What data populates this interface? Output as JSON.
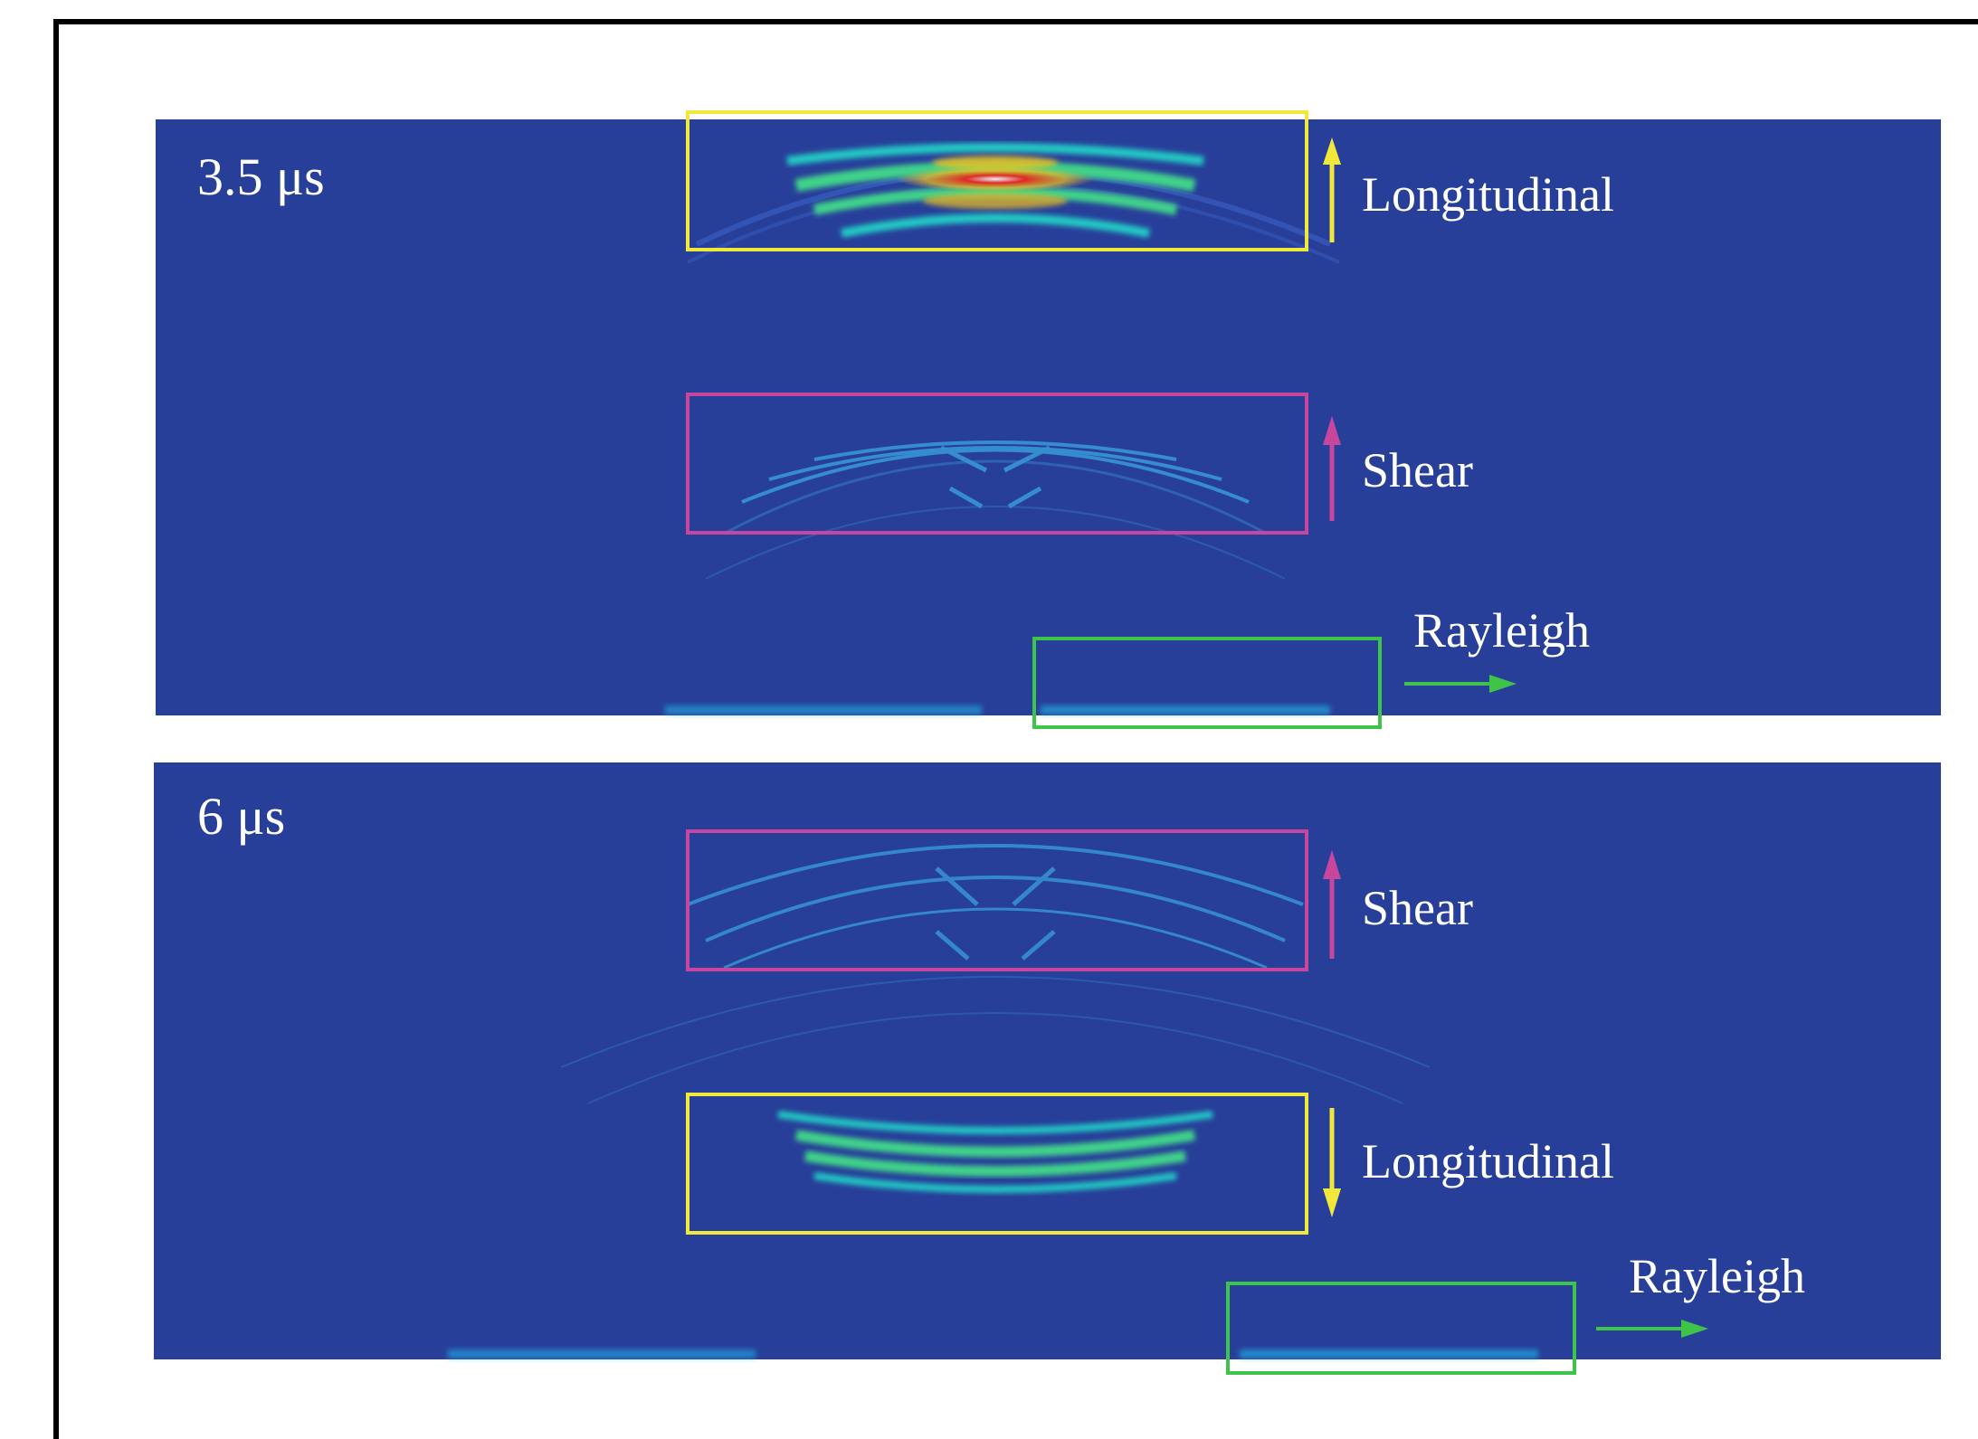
{
  "colors": {
    "field": "#283f9a",
    "longitudinal": "#f0e83a",
    "shear": "#c8479e",
    "rayleigh": "#3fc44a",
    "label": "#ffffff",
    "frame": "#000000"
  },
  "panels": [
    {
      "id": "top",
      "time_label": "3.5 μs",
      "annotations": {
        "longitudinal": "Longitudinal",
        "shear": "Shear",
        "rayleigh": "Rayleigh"
      },
      "directions": {
        "longitudinal": "up",
        "shear": "up",
        "rayleigh": "right"
      }
    },
    {
      "id": "bottom",
      "time_label": "6 μs",
      "annotations": {
        "shear": "Shear",
        "longitudinal": "Longitudinal",
        "rayleigh": "Rayleigh"
      },
      "directions": {
        "shear": "up",
        "longitudinal": "down",
        "rayleigh": "right"
      }
    }
  ]
}
